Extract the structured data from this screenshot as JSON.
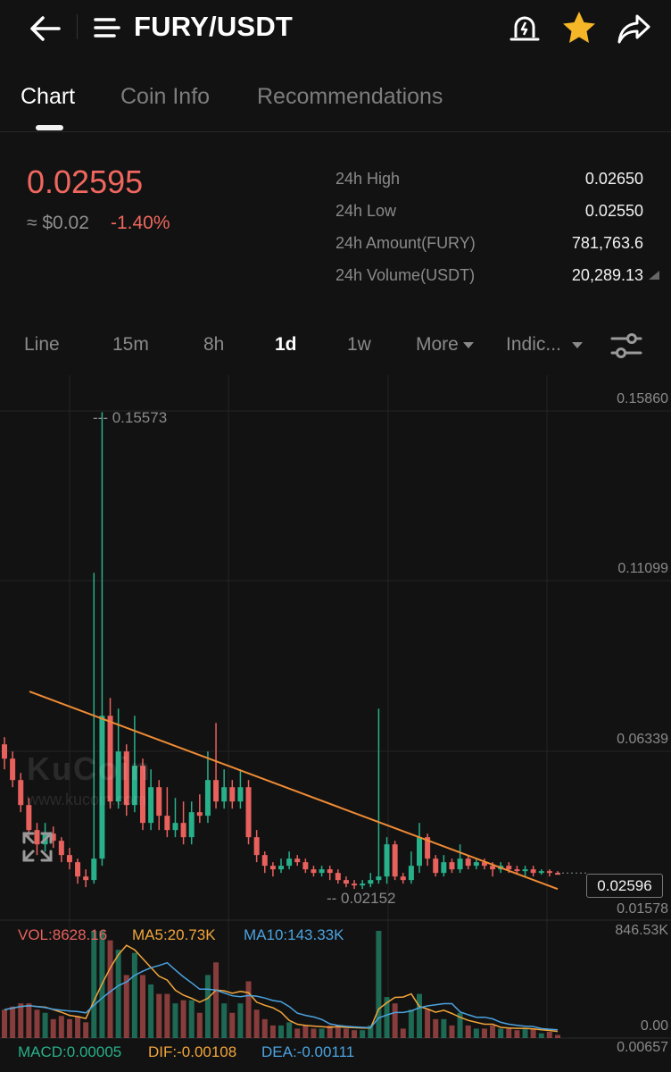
{
  "header": {
    "title": "FURY/USDT",
    "icons": [
      "back-arrow-icon",
      "menu-icon",
      "price-alert-icon",
      "star-icon",
      "share-icon"
    ],
    "star_color": "#f5b627"
  },
  "tabs": [
    {
      "label": "Chart",
      "active": true
    },
    {
      "label": "Coin Info",
      "active": false
    },
    {
      "label": "Recommendations",
      "active": false
    }
  ],
  "ticker": {
    "price": "0.02595",
    "approx_usd": "≈ $0.02",
    "change": "-1.40%",
    "stats": [
      {
        "label": "24h High",
        "value": "0.02650"
      },
      {
        "label": "24h Low",
        "value": "0.02550"
      },
      {
        "label": "24h Amount(FURY)",
        "value": "781,763.6"
      },
      {
        "label": "24h Volume(USDT)",
        "value": "20,289.13"
      }
    ]
  },
  "intervals": {
    "items": [
      "Line",
      "15m",
      "8h",
      "1d",
      "1w"
    ],
    "active": "1d",
    "more": "More",
    "indicators": "Indic..."
  },
  "chart": {
    "y_axis": [
      "0.15860",
      "0.11099",
      "0.06339",
      "0.01578"
    ],
    "current_price": "0.02596",
    "high_marker": "--- 0.15573",
    "low_marker": "-- 0.02152",
    "watermark": "KuCoin",
    "watermark_url": "www.kucoin.com",
    "volume": {
      "vol": "VOL:8628.16",
      "ma5": "MA5:20.73K",
      "ma10": "MA10:143.33K",
      "max": "846.53K",
      "min": "0.00"
    },
    "macd": {
      "macd": "MACD:0.00005",
      "dif": "DIF:-0.00108",
      "dea": "DEA:-0.00111",
      "axis": "0.00657"
    },
    "colors": {
      "up": "#27b08a",
      "down": "#e8615d",
      "trend": "#f08b34",
      "ma5": "#f2a53b",
      "ma10": "#4ba3e0"
    }
  },
  "chart_data": {
    "type": "candlestick",
    "ylim": [
      0.01578,
      0.1586
    ],
    "candles": [
      [
        0.062,
        0.058,
        0.064,
        0.055
      ],
      [
        0.058,
        0.052,
        0.06,
        0.05
      ],
      [
        0.052,
        0.045,
        0.054,
        0.043
      ],
      [
        0.045,
        0.038,
        0.047,
        0.036
      ],
      [
        0.038,
        0.034,
        0.04,
        0.031
      ],
      [
        0.034,
        0.037,
        0.04,
        0.032
      ],
      [
        0.037,
        0.035,
        0.039,
        0.033
      ],
      [
        0.035,
        0.031,
        0.036,
        0.029
      ],
      [
        0.031,
        0.029,
        0.033,
        0.027
      ],
      [
        0.029,
        0.025,
        0.03,
        0.023
      ],
      [
        0.025,
        0.024,
        0.027,
        0.022
      ],
      [
        0.024,
        0.03,
        0.11,
        0.023
      ],
      [
        0.03,
        0.07,
        0.155,
        0.028
      ],
      [
        0.07,
        0.046,
        0.075,
        0.044
      ],
      [
        0.046,
        0.06,
        0.072,
        0.044
      ],
      [
        0.06,
        0.045,
        0.062,
        0.042
      ],
      [
        0.045,
        0.056,
        0.07,
        0.043
      ],
      [
        0.056,
        0.04,
        0.058,
        0.038
      ],
      [
        0.04,
        0.05,
        0.055,
        0.038
      ],
      [
        0.05,
        0.042,
        0.052,
        0.038
      ],
      [
        0.042,
        0.038,
        0.05,
        0.036
      ],
      [
        0.038,
        0.04,
        0.047,
        0.036
      ],
      [
        0.04,
        0.036,
        0.046,
        0.034
      ],
      [
        0.036,
        0.043,
        0.046,
        0.034
      ],
      [
        0.043,
        0.042,
        0.048,
        0.04
      ],
      [
        0.042,
        0.052,
        0.06,
        0.04
      ],
      [
        0.052,
        0.046,
        0.068,
        0.044
      ],
      [
        0.046,
        0.05,
        0.055,
        0.044
      ],
      [
        0.05,
        0.046,
        0.052,
        0.044
      ],
      [
        0.046,
        0.05,
        0.055,
        0.044
      ],
      [
        0.05,
        0.036,
        0.052,
        0.034
      ],
      [
        0.036,
        0.031,
        0.038,
        0.029
      ],
      [
        0.031,
        0.028,
        0.032,
        0.026
      ],
      [
        0.028,
        0.027,
        0.029,
        0.025
      ],
      [
        0.027,
        0.028,
        0.03,
        0.026
      ],
      [
        0.028,
        0.03,
        0.032,
        0.027
      ],
      [
        0.03,
        0.029,
        0.031,
        0.028
      ],
      [
        0.029,
        0.027,
        0.03,
        0.026
      ],
      [
        0.027,
        0.026,
        0.028,
        0.025
      ],
      [
        0.026,
        0.027,
        0.028,
        0.025
      ],
      [
        0.027,
        0.026,
        0.028,
        0.024
      ],
      [
        0.026,
        0.024,
        0.027,
        0.023
      ],
      [
        0.024,
        0.023,
        0.025,
        0.022
      ],
      [
        0.023,
        0.0225,
        0.024,
        0.0215
      ],
      [
        0.0225,
        0.023,
        0.024,
        0.0215
      ],
      [
        0.023,
        0.024,
        0.026,
        0.022
      ],
      [
        0.024,
        0.025,
        0.072,
        0.023
      ],
      [
        0.025,
        0.034,
        0.036,
        0.023
      ],
      [
        0.034,
        0.025,
        0.035,
        0.024
      ],
      [
        0.025,
        0.024,
        0.026,
        0.023
      ],
      [
        0.024,
        0.028,
        0.032,
        0.023
      ],
      [
        0.028,
        0.036,
        0.04,
        0.026
      ],
      [
        0.036,
        0.03,
        0.037,
        0.028
      ],
      [
        0.03,
        0.026,
        0.031,
        0.025
      ],
      [
        0.026,
        0.029,
        0.031,
        0.025
      ],
      [
        0.029,
        0.027,
        0.03,
        0.026
      ],
      [
        0.027,
        0.03,
        0.034,
        0.026
      ],
      [
        0.03,
        0.028,
        0.031,
        0.027
      ],
      [
        0.028,
        0.029,
        0.03,
        0.027
      ],
      [
        0.029,
        0.028,
        0.03,
        0.027
      ],
      [
        0.028,
        0.027,
        0.029,
        0.025
      ],
      [
        0.027,
        0.028,
        0.029,
        0.026
      ],
      [
        0.028,
        0.027,
        0.029,
        0.026
      ],
      [
        0.027,
        0.0265,
        0.028,
        0.0255
      ],
      [
        0.0265,
        0.027,
        0.028,
        0.025
      ],
      [
        0.027,
        0.026,
        0.028,
        0.025
      ],
      [
        0.026,
        0.0265,
        0.027,
        0.0255
      ],
      [
        0.0265,
        0.026,
        0.027,
        0.025
      ],
      [
        0.026,
        0.02596,
        0.0265,
        0.0255
      ]
    ],
    "volume_max": 846530,
    "ma5_line": "ma5",
    "ma10_line": "ma10"
  }
}
